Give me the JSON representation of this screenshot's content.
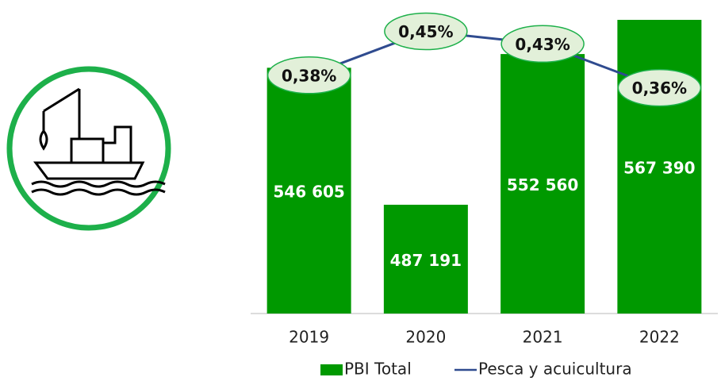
{
  "chart_data": {
    "type": "bar-line",
    "categories": [
      "2019",
      "2020",
      "2021",
      "2022"
    ],
    "series": [
      {
        "name": "PBI Total",
        "type": "bar",
        "color": "#009900",
        "values": [
          546605,
          487191,
          552560,
          567390
        ],
        "value_labels": [
          "546 605",
          "487 191",
          "552 560",
          "567 390"
        ]
      },
      {
        "name": "Pesca y acuicultura",
        "type": "line",
        "axis": "y2",
        "color": "#2f4b8f",
        "values": [
          0.38,
          0.45,
          0.43,
          0.36
        ],
        "value_labels": [
          "0,38%",
          "0,45%",
          "0,43%",
          "0,36%"
        ]
      }
    ],
    "ylim": [
      440000,
      576000
    ],
    "y2lim": [
      0,
      0.5
    ],
    "legend": "bottom"
  }
}
